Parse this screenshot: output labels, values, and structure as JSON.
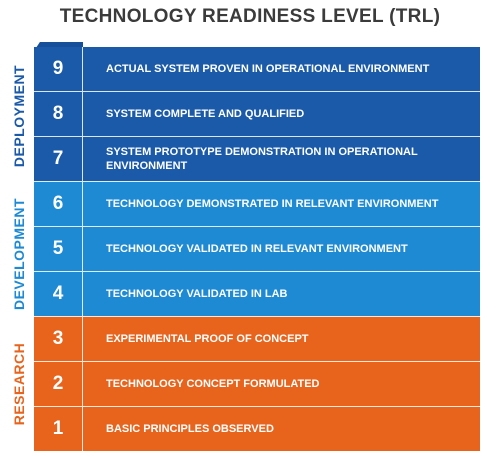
{
  "title": "TECHNOLOGY READINESS LEVEL (TRL)",
  "colors": {
    "deployment": "#1a5aa8",
    "development": "#1e8ad4",
    "research": "#e8641c",
    "deployment_dark": "#17509a",
    "development_dark": "#1a7cc2",
    "research_dark": "#d85a16"
  },
  "phases": [
    {
      "label": "DEPLOYMENT",
      "color": "#1a5aa8"
    },
    {
      "label": "DEVELOPMENT",
      "color": "#1e8ad4"
    },
    {
      "label": "RESEARCH",
      "color": "#e8641c"
    }
  ],
  "levels": [
    {
      "number": "9",
      "text": "ACTUAL SYSTEM PROVEN IN OPERATIONAL ENVIRONMENT",
      "phase": "deployment"
    },
    {
      "number": "8",
      "text": "SYSTEM COMPLETE AND QUALIFIED",
      "phase": "deployment"
    },
    {
      "number": "7",
      "text": "SYSTEM PROTOTYPE DEMONSTRATION IN OPERATIONAL ENVIRONMENT",
      "phase": "deployment"
    },
    {
      "number": "6",
      "text": "TECHNOLOGY DEMONSTRATED IN RELEVANT ENVIRONMENT",
      "phase": "development"
    },
    {
      "number": "5",
      "text": "TECHNOLOGY VALIDATED IN RELEVANT ENVIRONMENT",
      "phase": "development"
    },
    {
      "number": "4",
      "text": "TECHNOLOGY VALIDATED IN LAB",
      "phase": "development"
    },
    {
      "number": "3",
      "text": "EXPERIMENTAL PROOF OF CONCEPT",
      "phase": "research"
    },
    {
      "number": "2",
      "text": "TECHNOLOGY CONCEPT FORMULATED",
      "phase": "research"
    },
    {
      "number": "1",
      "text": "BASIC PRINCIPLES OBSERVED",
      "phase": "research"
    }
  ]
}
